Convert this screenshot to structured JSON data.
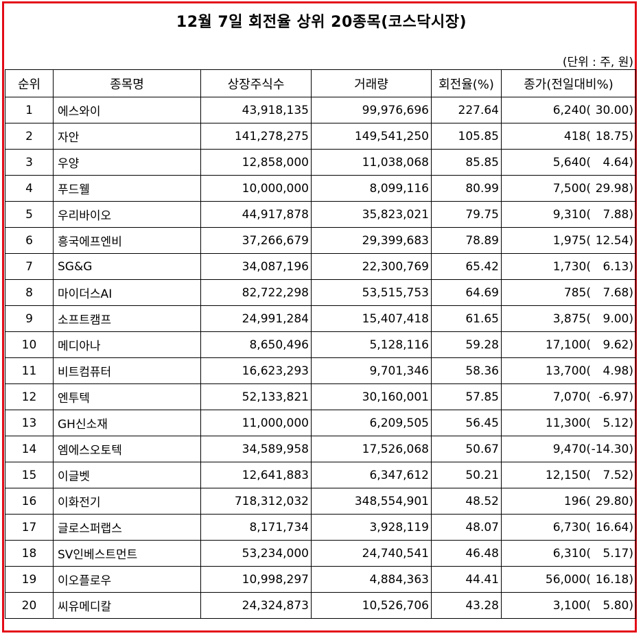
{
  "title": "12월 7일 회전율 상위 20종목(코스닥시장)",
  "unit_note": "(단위 : 주, 원)",
  "accent_color": "#e30b17",
  "headers": [
    "순위",
    "종목명",
    "상장주식수",
    "거래량",
    "회전율(%)",
    "종가(전일대비%)"
  ],
  "rows": [
    {
      "rank": "1",
      "name": "에스와이",
      "listed": "43,918,135",
      "volume": "99,976,696",
      "turnover": "227.64",
      "close": "6,240(",
      "change": "30.00)"
    },
    {
      "rank": "2",
      "name": "자안",
      "listed": "141,278,275",
      "volume": "149,541,250",
      "turnover": "105.85",
      "close": "418(",
      "change": "18.75)"
    },
    {
      "rank": "3",
      "name": "우양",
      "listed": "12,858,000",
      "volume": "11,038,068",
      "turnover": "85.85",
      "close": "5,640(",
      "change": "4.64)"
    },
    {
      "rank": "4",
      "name": "푸드웰",
      "listed": "10,000,000",
      "volume": "8,099,116",
      "turnover": "80.99",
      "close": "7,500(",
      "change": "29.98)"
    },
    {
      "rank": "5",
      "name": "우리바이오",
      "listed": "44,917,878",
      "volume": "35,823,021",
      "turnover": "79.75",
      "close": "9,310(",
      "change": "7.88)"
    },
    {
      "rank": "6",
      "name": "흥국에프엔비",
      "listed": "37,266,679",
      "volume": "29,399,683",
      "turnover": "78.89",
      "close": "1,975(",
      "change": "12.54)"
    },
    {
      "rank": "7",
      "name": "SG&G",
      "listed": "34,087,196",
      "volume": "22,300,769",
      "turnover": "65.42",
      "close": "1,730(",
      "change": "6.13)"
    },
    {
      "rank": "8",
      "name": "마이더스AI",
      "listed": "82,722,298",
      "volume": "53,515,753",
      "turnover": "64.69",
      "close": "785(",
      "change": "7.68)"
    },
    {
      "rank": "9",
      "name": "소프트캠프",
      "listed": "24,991,284",
      "volume": "15,407,418",
      "turnover": "61.65",
      "close": "3,875(",
      "change": "9.00)"
    },
    {
      "rank": "10",
      "name": "메디아나",
      "listed": "8,650,496",
      "volume": "5,128,116",
      "turnover": "59.28",
      "close": "17,100(",
      "change": "9.62)"
    },
    {
      "rank": "11",
      "name": "비트컴퓨터",
      "listed": "16,623,293",
      "volume": "9,701,346",
      "turnover": "58.36",
      "close": "13,700(",
      "change": "4.98)"
    },
    {
      "rank": "12",
      "name": "엔투텍",
      "listed": "52,133,821",
      "volume": "30,160,001",
      "turnover": "57.85",
      "close": "7,070(",
      "change": "-6.97)"
    },
    {
      "rank": "13",
      "name": "GH신소재",
      "listed": "11,000,000",
      "volume": "6,209,505",
      "turnover": "56.45",
      "close": "11,300(",
      "change": "5.12)"
    },
    {
      "rank": "14",
      "name": "엠에스오토텍",
      "listed": "34,589,958",
      "volume": "17,526,068",
      "turnover": "50.67",
      "close": "9,470(",
      "change": "-14.30)"
    },
    {
      "rank": "15",
      "name": "이글벳",
      "listed": "12,641,883",
      "volume": "6,347,612",
      "turnover": "50.21",
      "close": "12,150(",
      "change": "7.52)"
    },
    {
      "rank": "16",
      "name": "이화전기",
      "listed": "718,312,032",
      "volume": "348,554,901",
      "turnover": "48.52",
      "close": "196(",
      "change": "29.80)"
    },
    {
      "rank": "17",
      "name": "글로스퍼랩스",
      "listed": "8,171,734",
      "volume": "3,928,119",
      "turnover": "48.07",
      "close": "6,730(",
      "change": "16.64)"
    },
    {
      "rank": "18",
      "name": "SV인베스트먼트",
      "listed": "53,234,000",
      "volume": "24,740,541",
      "turnover": "46.48",
      "close": "6,310(",
      "change": "5.17)"
    },
    {
      "rank": "19",
      "name": "이오플로우",
      "listed": "10,998,297",
      "volume": "4,884,363",
      "turnover": "44.41",
      "close": "56,000(",
      "change": "16.18)"
    },
    {
      "rank": "20",
      "name": "씨유메디칼",
      "listed": "24,324,873",
      "volume": "10,526,706",
      "turnover": "43.28",
      "close": "3,100(",
      "change": "5.80)"
    }
  ]
}
